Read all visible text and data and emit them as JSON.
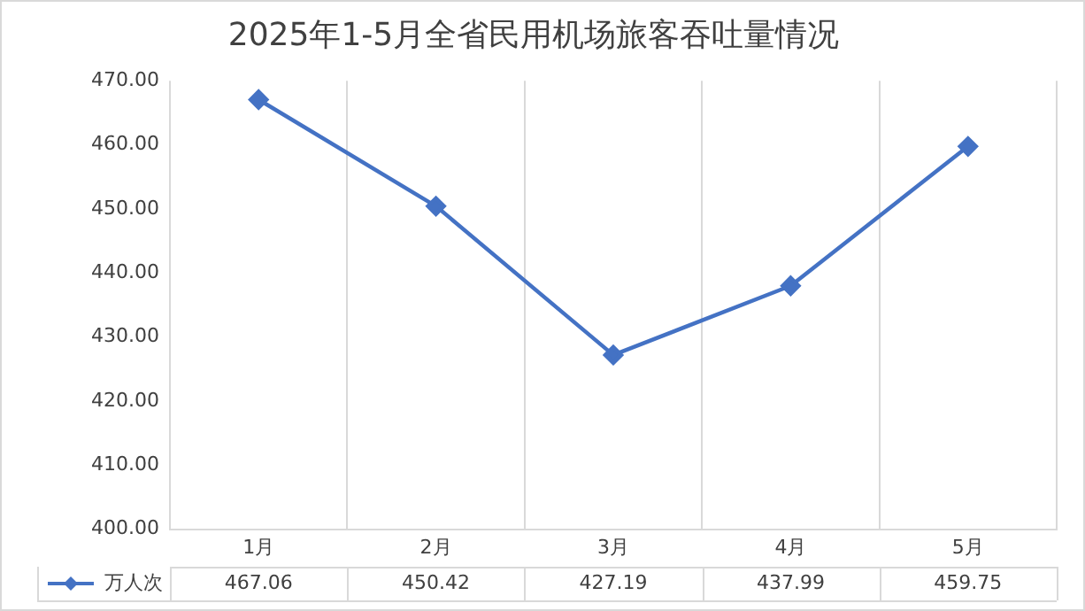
{
  "chart_data": {
    "type": "line",
    "title": "2025年1-5月全省民用机场旅客吞吐量情况",
    "categories": [
      "1月",
      "2月",
      "3月",
      "4月",
      "5月"
    ],
    "series": [
      {
        "name": "万人次",
        "color": "#4472c4",
        "values": [
          467.06,
          450.42,
          427.19,
          437.99,
          459.75
        ]
      }
    ],
    "ylim": [
      400,
      470
    ],
    "yticks": [
      {
        "value": 400,
        "label": "400.00"
      },
      {
        "value": 410,
        "label": "410.00"
      },
      {
        "value": 420,
        "label": "420.00"
      },
      {
        "value": 430,
        "label": "430.00"
      },
      {
        "value": 440,
        "label": "440.00"
      },
      {
        "value": 450,
        "label": "450.00"
      },
      {
        "value": 460,
        "label": "460.00"
      },
      {
        "value": 470,
        "label": "470.00"
      }
    ],
    "grid": "x",
    "legend": "bottom",
    "marker": "diamond",
    "line_style": "solid",
    "data_labels": true
  }
}
